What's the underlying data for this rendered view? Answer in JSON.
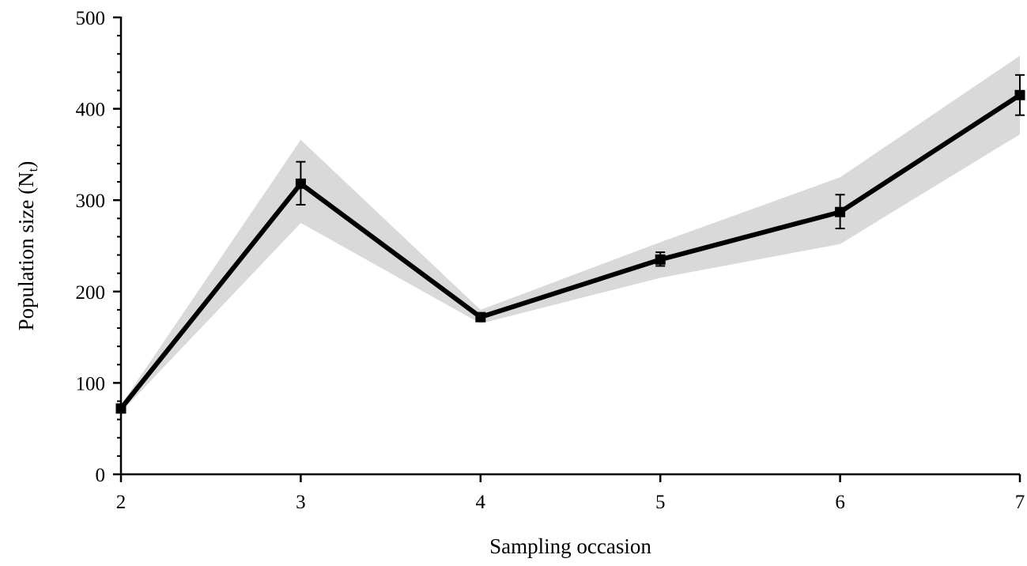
{
  "chart_data": {
    "type": "line",
    "title": "",
    "xlabel": "Sampling occasion",
    "ylabel": {
      "main": "Population size (N",
      "subscript": "t",
      "close": ")"
    },
    "x": [
      2,
      3,
      4,
      5,
      6,
      7
    ],
    "xlim": [
      2,
      7
    ],
    "ylim": [
      0,
      500
    ],
    "x_ticks": [
      "2",
      "3",
      "4",
      "5",
      "6",
      "7"
    ],
    "y_ticks": [
      "0",
      "100",
      "200",
      "300",
      "400",
      "500"
    ],
    "y_tick_values": [
      0,
      100,
      200,
      300,
      400,
      500
    ],
    "y_minor_step": 20,
    "grid": false,
    "legend": "none",
    "series": [
      {
        "values": [
          72,
          318,
          172,
          235,
          287,
          415
        ],
        "error_low": [
          72,
          295,
          172,
          228,
          269,
          393
        ],
        "error_high": [
          72,
          342,
          172,
          243,
          306,
          437
        ],
        "band_low": [
          68,
          275,
          165,
          215,
          252,
          372
        ],
        "band_high": [
          76,
          366,
          180,
          254,
          325,
          458
        ],
        "marker": "square",
        "line_color": "#000000",
        "band_color": "#d9d9d9"
      }
    ]
  }
}
